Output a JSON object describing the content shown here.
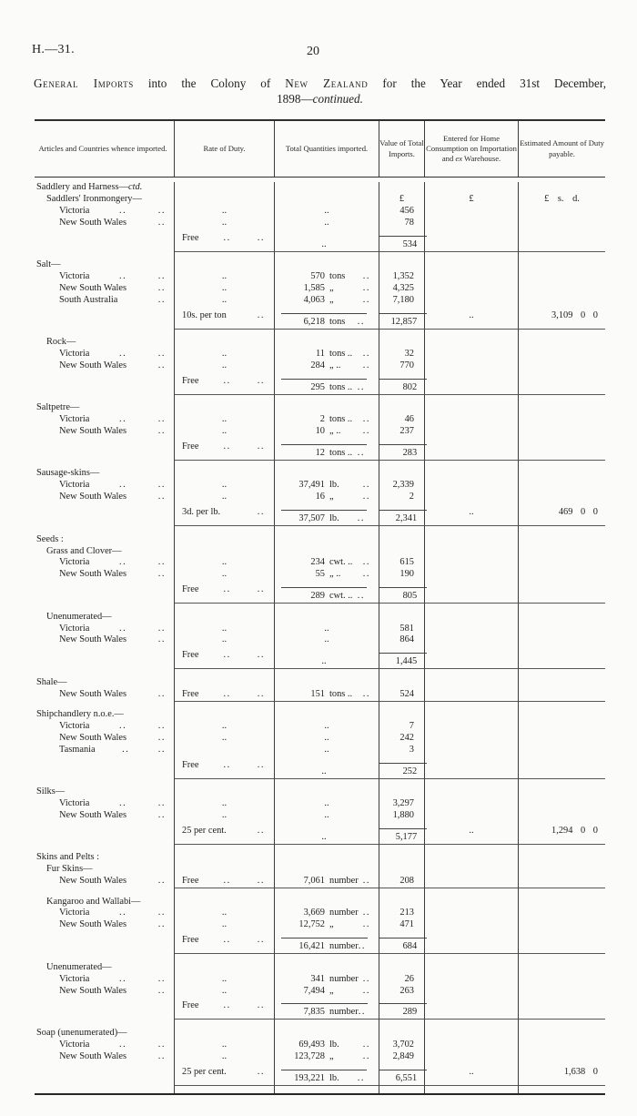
{
  "page": {
    "doc_ref": "H.—31.",
    "page_number": "20",
    "title_parts": [
      {
        "t": "General",
        "sc": true
      },
      {
        "t": " Imports",
        "sc": true
      },
      {
        "t": " into the Colony of "
      },
      {
        "t": "New Zealand",
        "sc": true
      },
      {
        "t": " for the Year ended 31st December,"
      }
    ],
    "title_line2": {
      "plain": "1898—",
      "italic": "continued."
    }
  },
  "table": {
    "headers": [
      [
        {
          "t": "Articles and Countries whence imported."
        }
      ],
      [
        {
          "t": "Rate of Duty."
        }
      ],
      [
        {
          "t": "Total Quantities imported."
        }
      ],
      [
        {
          "t": "Value of Total Imports."
        }
      ],
      [
        {
          "t": "Entered for Home Consumption on Importation and "
        },
        {
          "t": "ex",
          "it": true
        },
        {
          "t": " Warehouse."
        }
      ],
      [
        {
          "t": "Estimated Amount of Duty payable."
        }
      ]
    ],
    "rows": [
      {
        "t": "l",
        "ind": 0,
        "a": "Saddlery and Harness—",
        "ai": "ctd."
      },
      {
        "t": "l",
        "ind": 1,
        "a": "Saddlers' Ironmongery—",
        "cur": true,
        "v": "£",
        "e": "£",
        "d": "£ s. d."
      },
      {
        "t": "r",
        "a": "Victoria",
        "ad": 2,
        "rc": true,
        "q": "..",
        "v": "456"
      },
      {
        "t": "r",
        "a": "New South Wales",
        "ad": 1,
        "rc": true,
        "q": "..",
        "v": "78"
      },
      {
        "t": "t",
        "r": "Free",
        "rd": 2,
        "q": "..",
        "v": "534"
      },
      {
        "t": "s"
      },
      {
        "t": "l",
        "ind": 0,
        "a": "Salt—"
      },
      {
        "t": "r",
        "a": "Victoria",
        "ad": 2,
        "rc": true,
        "qn": "570",
        "qu": "tons",
        "v": "1,352"
      },
      {
        "t": "r",
        "a": "New South Wales",
        "ad": 1,
        "rc": true,
        "qn": "1,585",
        "qu": "„",
        "v": "4,325"
      },
      {
        "t": "r",
        "a": "South Australia",
        "ad": 1,
        "rc": true,
        "qn": "4,063",
        "qu": "„",
        "v": "7,180"
      },
      {
        "t": "t",
        "r": "10s. per ton",
        "rd": 1,
        "qn": "6,218",
        "qu": "tons",
        "qs": true,
        "v": "12,857",
        "e": "..",
        "d": "3,109 0 0"
      },
      {
        "t": "s"
      },
      {
        "t": "l",
        "ind": 1,
        "a": "Rock—"
      },
      {
        "t": "r",
        "a": "Victoria",
        "ad": 2,
        "rc": true,
        "qn": "11",
        "qu": "tons ..",
        "v": "32"
      },
      {
        "t": "r",
        "a": "New South Wales",
        "ad": 1,
        "rc": true,
        "qn": "284",
        "qu": "„ ..",
        "v": "770"
      },
      {
        "t": "t",
        "r": "Free",
        "rd": 2,
        "qn": "295",
        "qu": "tons ..",
        "qs": true,
        "v": "802"
      },
      {
        "t": "s"
      },
      {
        "t": "l",
        "ind": 0,
        "a": "Saltpetre—"
      },
      {
        "t": "r",
        "a": "Victoria",
        "ad": 2,
        "rc": true,
        "qn": "2",
        "qu": "tons ..",
        "v": "46"
      },
      {
        "t": "r",
        "a": "New South Wales",
        "ad": 1,
        "rc": true,
        "qn": "10",
        "qu": "„ ..",
        "v": "237"
      },
      {
        "t": "t",
        "r": "Free",
        "rd": 2,
        "qn": "12",
        "qu": "tons ..",
        "qs": true,
        "v": "283"
      },
      {
        "t": "s"
      },
      {
        "t": "l",
        "ind": 0,
        "a": "Sausage-skins—"
      },
      {
        "t": "r",
        "a": "Victoria",
        "ad": 2,
        "rc": true,
        "qn": "37,491",
        "qu": "lb.",
        "v": "2,339"
      },
      {
        "t": "r",
        "a": "New South Wales",
        "ad": 1,
        "rc": true,
        "qn": "16",
        "qu": "„",
        "v": "2"
      },
      {
        "t": "t",
        "r": "3d. per lb.",
        "rd": 1,
        "qn": "37,507",
        "qu": "lb.",
        "qs": true,
        "v": "2,341",
        "e": "..",
        "d": "469 0 0"
      },
      {
        "t": "s"
      },
      {
        "t": "l",
        "ind": 0,
        "a": "Seeds :"
      },
      {
        "t": "l",
        "ind": 1,
        "a": "Grass and Clover—"
      },
      {
        "t": "r",
        "a": "Victoria",
        "ad": 2,
        "rc": true,
        "qn": "234",
        "qu": "cwt. ..",
        "v": "615"
      },
      {
        "t": "r",
        "a": "New South Wales",
        "ad": 1,
        "rc": true,
        "qn": "55",
        "qu": "„ ..",
        "v": "190"
      },
      {
        "t": "t",
        "r": "Free",
        "rd": 2,
        "qn": "289",
        "qu": "cwt. ..",
        "qs": true,
        "v": "805"
      },
      {
        "t": "s"
      },
      {
        "t": "l",
        "ind": 1,
        "a": "Unenumerated—"
      },
      {
        "t": "r",
        "a": "Victoria",
        "ad": 2,
        "rc": true,
        "q": "..",
        "v": "581"
      },
      {
        "t": "r",
        "a": "New South Wales",
        "ad": 1,
        "rc": true,
        "q": "..",
        "v": "864"
      },
      {
        "t": "t",
        "r": "Free",
        "rd": 2,
        "q": "..",
        "v": "1,445"
      },
      {
        "t": "s"
      },
      {
        "t": "l",
        "ind": 0,
        "a": "Shale—"
      },
      {
        "t": "r",
        "a": "New South Wales",
        "ad": 1,
        "r": "Free",
        "rd": 2,
        "qn": "151",
        "qu": "tons ..",
        "v": "524"
      },
      {
        "t": "s"
      },
      {
        "t": "l",
        "ind": 0,
        "a": "Shipchandlery n.o.e.—"
      },
      {
        "t": "r",
        "a": "Victoria",
        "ad": 2,
        "rc": true,
        "q": "..",
        "v": "7"
      },
      {
        "t": "r",
        "a": "New South Wales",
        "ad": 1,
        "rc": true,
        "q": "..",
        "v": "242"
      },
      {
        "t": "r",
        "a": "Tasmania",
        "ad": 2,
        "q": "..",
        "v": "3"
      },
      {
        "t": "t",
        "r": "Free",
        "rd": 2,
        "q": "..",
        "v": "252"
      },
      {
        "t": "s"
      },
      {
        "t": "l",
        "ind": 0,
        "a": "Silks—"
      },
      {
        "t": "r",
        "a": "Victoria",
        "ad": 2,
        "rc": true,
        "q": "..",
        "v": "3,297"
      },
      {
        "t": "r",
        "a": "New South Wales",
        "ad": 1,
        "rc": true,
        "q": "..",
        "v": "1,880"
      },
      {
        "t": "t",
        "r": "25 per cent.",
        "rd": 1,
        "q": "..",
        "v": "5,177",
        "e": "..",
        "d": "1,294 0 0"
      },
      {
        "t": "s"
      },
      {
        "t": "l",
        "ind": 0,
        "a": "Skins and Pelts :"
      },
      {
        "t": "l",
        "ind": 1,
        "a": "Fur Skins—"
      },
      {
        "t": "r",
        "a": "New South Wales",
        "ad": 1,
        "r": "Free",
        "rd": 2,
        "qn": "7,061",
        "qu": "number",
        "v": "208"
      },
      {
        "t": "s"
      },
      {
        "t": "l",
        "ind": 1,
        "a": "Kangaroo and Wallabi—"
      },
      {
        "t": "r",
        "a": "Victoria",
        "ad": 2,
        "rc": true,
        "qn": "3,669",
        "qu": "number",
        "v": "213"
      },
      {
        "t": "r",
        "a": "New South Wales",
        "ad": 1,
        "rc": true,
        "qn": "12,752",
        "qu": "„",
        "v": "471"
      },
      {
        "t": "t",
        "r": "Free",
        "rd": 2,
        "qn": "16,421",
        "qu": "number",
        "qs": true,
        "v": "684"
      },
      {
        "t": "s"
      },
      {
        "t": "l",
        "ind": 1,
        "a": "Unenumerated—"
      },
      {
        "t": "r",
        "a": "Victoria",
        "ad": 2,
        "rc": true,
        "qn": "341",
        "qu": "number",
        "v": "26"
      },
      {
        "t": "r",
        "a": "New South Wales",
        "ad": 1,
        "rc": true,
        "qn": "7,494",
        "qu": "„",
        "v": "263"
      },
      {
        "t": "t",
        "r": "Free",
        "rd": 2,
        "qn": "7,835",
        "qu": "number",
        "qs": true,
        "v": "289"
      },
      {
        "t": "s"
      },
      {
        "t": "l",
        "ind": 0,
        "a": "Soap (unenumerated)—"
      },
      {
        "t": "r",
        "a": "Victoria",
        "ad": 2,
        "rc": true,
        "qn": "69,493",
        "qu": "lb.",
        "v": "3,702"
      },
      {
        "t": "r",
        "a": "New South Wales",
        "ad": 1,
        "rc": true,
        "qn": "123,728",
        "qu": "„",
        "v": "2,849"
      },
      {
        "t": "t",
        "r": "25 per cent.",
        "rd": 1,
        "qn": "193,221",
        "qu": "lb.",
        "qs": true,
        "v": "6,551",
        "e": "..",
        "d": "1,638 0"
      },
      {
        "t": "s"
      }
    ]
  }
}
